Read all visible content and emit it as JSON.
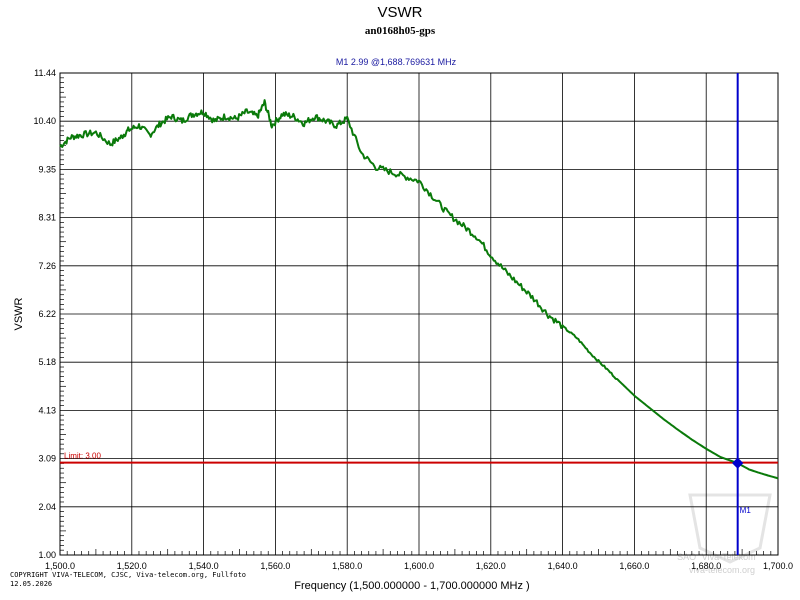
{
  "chart_data": {
    "type": "line",
    "title": "VSWR",
    "subtitle": "an0168h05-gps",
    "xlabel": "Frequency (1,500.000000 - 1,700.000000 MHz )",
    "ylabel": "VSWR",
    "xlim": [
      1500,
      1700
    ],
    "ylim": [
      1.0,
      11.44
    ],
    "x_ticks": [
      "1,500.0",
      "1,520.0",
      "1,540.0",
      "1,560.0",
      "1,580.0",
      "1,600.0",
      "1,620.0",
      "1,640.0",
      "1,660.0",
      "1,680.0",
      "1,700.0"
    ],
    "y_ticks": [
      "11.44",
      "10.40",
      "9.35",
      "8.31",
      "7.26",
      "6.22",
      "5.18",
      "4.13",
      "3.09",
      "2.04",
      "1.00"
    ],
    "grid": true,
    "series": [
      {
        "color": "#0a7a0a",
        "x": [
          1500,
          1503,
          1506,
          1510,
          1514,
          1517,
          1519,
          1522,
          1525,
          1528,
          1531,
          1534,
          1537,
          1540,
          1543,
          1546,
          1549,
          1552,
          1555,
          1557,
          1559,
          1562,
          1565,
          1568,
          1571,
          1574,
          1577,
          1580,
          1584,
          1588,
          1592,
          1596,
          1600,
          1604,
          1608,
          1612,
          1616,
          1620,
          1624,
          1628,
          1632,
          1636,
          1640,
          1644,
          1648,
          1652,
          1656,
          1660,
          1664,
          1668,
          1672,
          1676,
          1680,
          1684,
          1688.77,
          1692,
          1696,
          1700
        ],
        "y": [
          9.85,
          10.05,
          10.1,
          10.15,
          9.9,
          10.05,
          10.2,
          10.3,
          10.1,
          10.35,
          10.5,
          10.4,
          10.55,
          10.6,
          10.4,
          10.5,
          10.45,
          10.6,
          10.5,
          10.8,
          10.3,
          10.55,
          10.5,
          10.35,
          10.5,
          10.4,
          10.3,
          10.45,
          9.7,
          9.4,
          9.3,
          9.2,
          9.1,
          8.75,
          8.4,
          8.15,
          7.9,
          7.5,
          7.15,
          6.85,
          6.55,
          6.2,
          5.95,
          5.7,
          5.35,
          5.05,
          4.75,
          4.45,
          4.2,
          3.95,
          3.72,
          3.5,
          3.3,
          3.12,
          2.99,
          2.85,
          2.75,
          2.66
        ]
      }
    ],
    "limit": {
      "value": 3.0,
      "label": "Limit: 3.00",
      "color": "#cc0000"
    },
    "marker": {
      "name": "M1",
      "x": 1688.769631,
      "y": 2.99,
      "label": "M1   2.99 @1,688.769631 MHz",
      "color": "#0000cc"
    }
  },
  "footer": {
    "copyright": "COPYRIGHT VIVA-TELECOM, CJSC, Viva-telecom.org, Fullfoto",
    "date": "12.05.2026"
  },
  "watermark": {
    "line1": "SAO \"Viva-Telekom\"",
    "line2": "viva-telecom.org"
  }
}
